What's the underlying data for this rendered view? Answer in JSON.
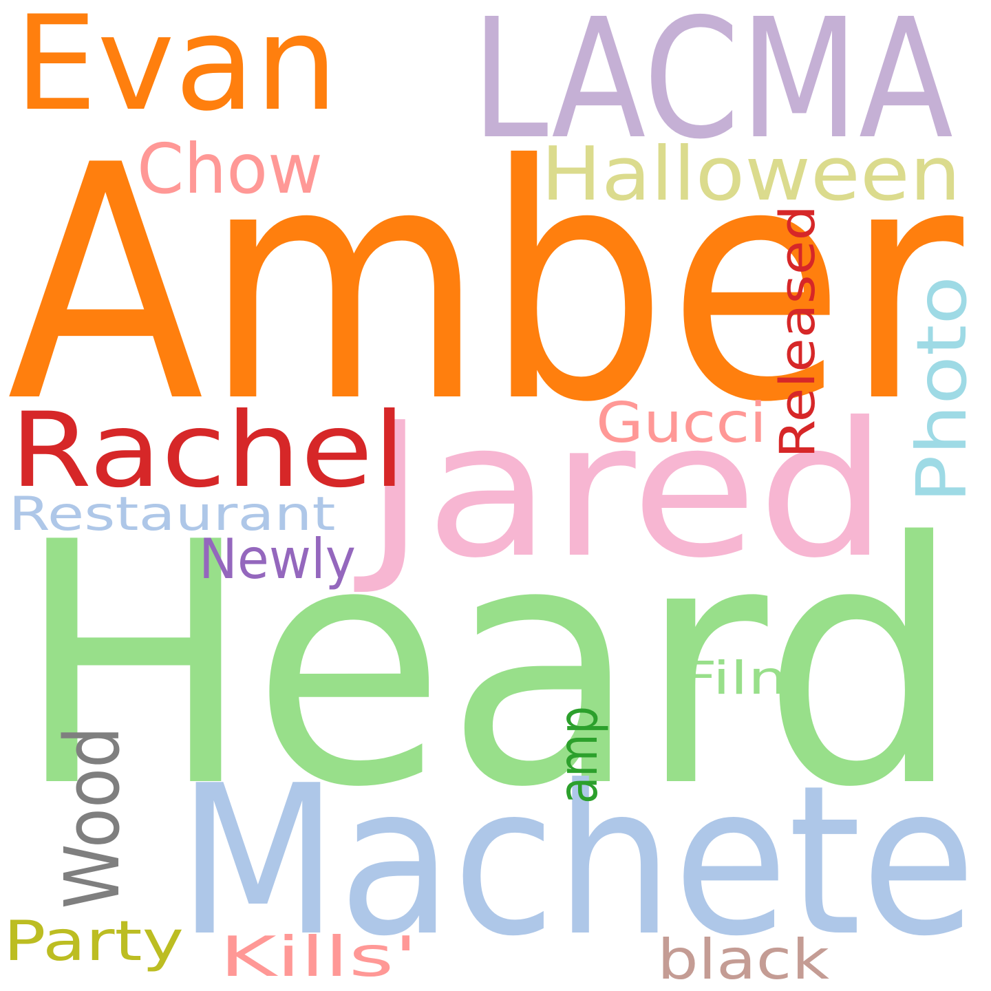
{
  "words": [
    {
      "text": "Amber",
      "color": "#ff7f0e"
    },
    {
      "text": "Heard",
      "color": "#98df8a"
    },
    {
      "text": "Machete",
      "color": "#aec7e8"
    },
    {
      "text": "LACMA",
      "color": "#c5b0d5"
    },
    {
      "text": "Jared",
      "color": "#f7b6d2"
    },
    {
      "text": "Evan",
      "color": "#ff7f0e"
    },
    {
      "text": "Rachel",
      "color": "#d62728"
    },
    {
      "text": "Halloween",
      "color": "#dbdb8d"
    },
    {
      "text": "Chow",
      "color": "#ff9896"
    },
    {
      "text": "Photo",
      "color": "#9edae5"
    },
    {
      "text": "Released",
      "color": "#d62728"
    },
    {
      "text": "Gucci",
      "color": "#ff9896"
    },
    {
      "text": "Restaurant",
      "color": "#aec7e8"
    },
    {
      "text": "Newly",
      "color": "#9467bd"
    },
    {
      "text": "Wood",
      "color": "#7f7f7f"
    },
    {
      "text": "amp",
      "color": "#2ca02c"
    },
    {
      "text": "Film",
      "color": "#98df8a"
    },
    {
      "text": "Party",
      "color": "#bcbd22"
    },
    {
      "text": "Kills'",
      "color": "#ff9896"
    },
    {
      "text": "black",
      "color": "#c49c94"
    }
  ]
}
